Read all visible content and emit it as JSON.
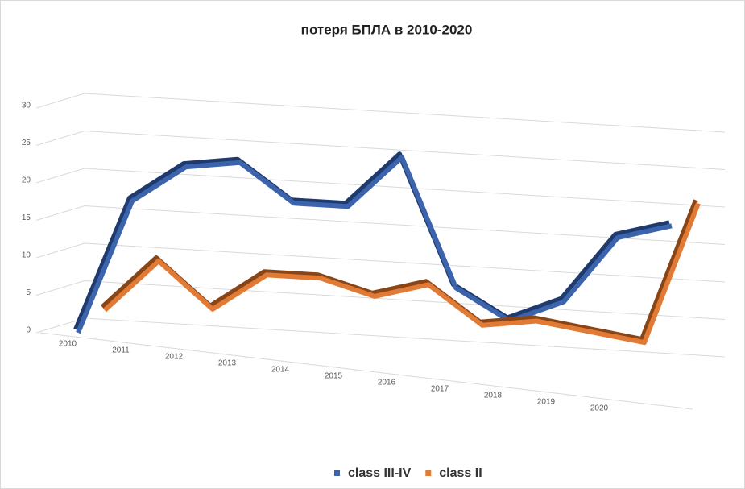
{
  "chart_data": {
    "type": "line3d",
    "title": "потеря БПЛА в 2010-2020",
    "categories": [
      "2010",
      "2011",
      "2012",
      "2013",
      "2014",
      "2015",
      "2016",
      "2017",
      "2018",
      "2019",
      "2020",
      null
    ],
    "series": [
      {
        "name": "class III-IV",
        "color": "#3c64ac",
        "values": [
          0,
          18,
          23,
          24,
          19,
          19,
          26,
          9,
          5,
          8,
          17,
          19
        ]
      },
      {
        "name": "class II",
        "color": "#e07a35",
        "values": [
          3,
          10,
          4,
          9,
          9,
          7,
          9,
          4,
          5,
          4,
          3,
          22
        ]
      }
    ],
    "ylim": [
      0,
      30
    ],
    "yticks": [
      0,
      5,
      10,
      15,
      20,
      25,
      30
    ],
    "grid": true,
    "legend": "bottom"
  }
}
